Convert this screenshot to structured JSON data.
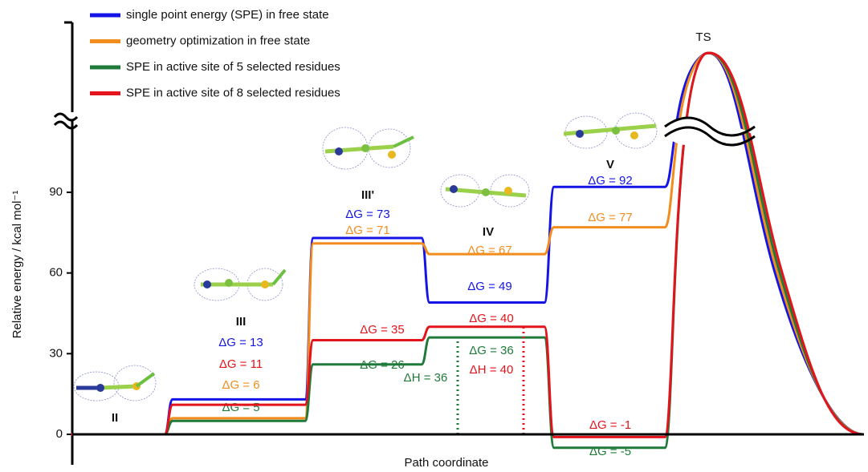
{
  "chart_data": {
    "type": "line",
    "x_label": "Path coordinate",
    "y_label": "Relative energy / kcal mol⁻¹",
    "categories": [
      "II",
      "III",
      "III'",
      "IV",
      "V",
      "TS"
    ],
    "series": [
      {
        "name": "single point energy (SPE) in free state",
        "color": "#1414e6",
        "values": [
          0,
          13,
          73,
          49,
          92,
          null
        ],
        "value_labels": [
          null,
          "ΔG = 13",
          "ΔG = 73",
          "ΔG = 49",
          "ΔG = 92",
          null
        ]
      },
      {
        "name": "geometry optimization in free state",
        "color": "#f28c1c",
        "values": [
          0,
          6,
          71,
          67,
          77,
          null
        ],
        "value_labels": [
          null,
          "ΔG = 6",
          "ΔG = 71",
          "ΔG = 67",
          "ΔG = 77",
          null
        ]
      },
      {
        "name": "SPE in active site of 5 selected residues",
        "color": "#1f7a3a",
        "values": [
          0,
          5,
          26,
          36,
          -5,
          null
        ],
        "value_labels": [
          null,
          "ΔG = 5",
          "ΔG = 26",
          "ΔG = 36",
          "ΔG = -5",
          null
        ]
      },
      {
        "name": "SPE in active site of 8 selected residues",
        "color": "#e3141c",
        "values": [
          0,
          11,
          35,
          40,
          -1,
          null
        ],
        "value_labels": [
          null,
          "ΔG = 11",
          "ΔG = 35",
          "ΔG = 40",
          "ΔG = -1",
          null
        ]
      }
    ],
    "annotations": [
      {
        "text": "ΔH = 36",
        "value": 36,
        "color": "#1f7a3a"
      },
      {
        "text": "ΔH = 40",
        "value": 40,
        "color": "#e3141c"
      }
    ],
    "ylim": [
      -12,
      115
    ],
    "yticks": [
      0,
      30,
      60,
      90
    ]
  }
}
